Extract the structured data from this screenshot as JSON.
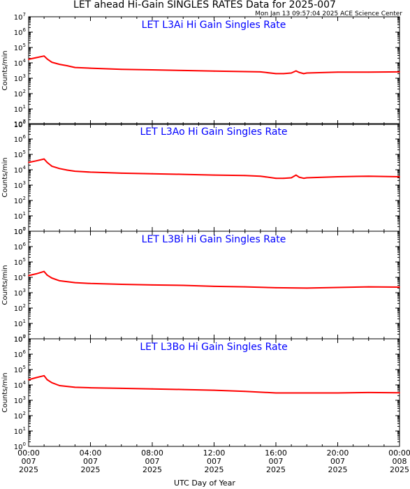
{
  "title": "LET ahead Hi-Gain SINGLES RATES Data for 2025-007",
  "timestamp": "Mon Jan 13 09:57:04 2025 ACE Science Center",
  "xlabel": "UTC Day of Year",
  "colors": {
    "series": "#ff0000",
    "panel_title": "#0000ff",
    "axis": "#000000"
  },
  "chart_data": [
    {
      "type": "line",
      "title": "LET L3Ai Hi Gain Singles Rate",
      "ylabel": "Counts/min",
      "yscale": "log",
      "ylim": [
        1,
        10000000
      ],
      "yticks": [
        1,
        10,
        100,
        1000,
        10000,
        100000,
        1000000,
        10000000
      ],
      "xlim": [
        "2025-007 00:00",
        "2025-008 00:00"
      ],
      "x_hours": [
        0,
        0.5,
        1,
        1.2,
        1.5,
        2,
        2.5,
        3,
        4,
        6,
        8,
        10,
        12,
        14,
        15,
        16,
        16.5,
        17,
        17.3,
        17.5,
        17.8,
        18,
        20,
        22,
        24
      ],
      "values": [
        17000,
        22000,
        28000,
        18000,
        11000,
        8000,
        6500,
        5000,
        4500,
        3800,
        3500,
        3200,
        2900,
        2700,
        2600,
        2000,
        2000,
        2200,
        3000,
        2400,
        2000,
        2200,
        2500,
        2500,
        2600
      ]
    },
    {
      "type": "line",
      "title": "LET L3Ao Hi Gain Singles Rate",
      "ylabel": "Counts/min",
      "yscale": "log",
      "ylim": [
        1,
        10000000
      ],
      "yticks": [
        1,
        10,
        100,
        1000,
        10000,
        100000,
        1000000,
        10000000
      ],
      "xlim": [
        "2025-007 00:00",
        "2025-008 00:00"
      ],
      "x_hours": [
        0,
        0.5,
        1,
        1.2,
        1.5,
        2,
        2.5,
        3,
        4,
        6,
        8,
        10,
        12,
        14,
        15,
        16,
        16.5,
        17,
        17.3,
        17.5,
        17.8,
        18,
        20,
        22,
        24
      ],
      "values": [
        30000,
        38000,
        50000,
        30000,
        17000,
        12000,
        9500,
        8000,
        7000,
        6000,
        5500,
        5000,
        4500,
        4200,
        3800,
        2800,
        2800,
        3000,
        4500,
        3300,
        2800,
        3000,
        3500,
        3800,
        3500
      ]
    },
    {
      "type": "line",
      "title": "LET L3Bi Hi Gain Singles Rate",
      "ylabel": "Counts/min",
      "yscale": "log",
      "ylim": [
        1,
        10000000
      ],
      "yticks": [
        1,
        10,
        100,
        1000,
        10000,
        100000,
        1000000,
        10000000
      ],
      "xlim": [
        "2025-007 00:00",
        "2025-008 00:00"
      ],
      "x_hours": [
        0,
        0.5,
        1,
        1.2,
        1.5,
        2,
        3,
        4,
        6,
        8,
        10,
        12,
        14,
        16,
        18,
        20,
        22,
        24
      ],
      "values": [
        13000,
        17000,
        24000,
        14000,
        9000,
        6000,
        4500,
        4000,
        3500,
        3200,
        3000,
        2600,
        2400,
        2100,
        2000,
        2200,
        2400,
        2300
      ]
    },
    {
      "type": "line",
      "title": "LET L3Bo Hi Gain Singles Rate",
      "ylabel": "Counts/min",
      "yscale": "log",
      "ylim": [
        1,
        10000000
      ],
      "yticks": [
        1,
        10,
        100,
        1000,
        10000,
        100000,
        1000000,
        10000000
      ],
      "xlim": [
        "2025-007 00:00",
        "2025-008 00:00"
      ],
      "x_hours": [
        0,
        0.5,
        1,
        1.2,
        1.5,
        2,
        3,
        4,
        6,
        8,
        10,
        12,
        14,
        16,
        18,
        20,
        22,
        24
      ],
      "values": [
        22000,
        30000,
        40000,
        22000,
        14000,
        9000,
        7000,
        6500,
        6000,
        5500,
        5000,
        4500,
        3800,
        3000,
        3000,
        3000,
        3200,
        3100
      ]
    }
  ],
  "x_ticks": [
    {
      "time": "00:00",
      "doy": "007",
      "year": "2025"
    },
    {
      "time": "04:00",
      "doy": "007",
      "year": "2025"
    },
    {
      "time": "08:00",
      "doy": "007",
      "year": "2025"
    },
    {
      "time": "12:00",
      "doy": "007",
      "year": "2025"
    },
    {
      "time": "16:00",
      "doy": "007",
      "year": "2025"
    },
    {
      "time": "20:00",
      "doy": "007",
      "year": "2025"
    },
    {
      "time": "00:00",
      "doy": "008",
      "year": "2025"
    }
  ]
}
